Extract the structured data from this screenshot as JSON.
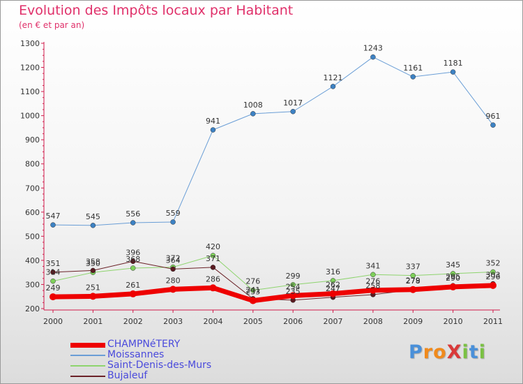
{
  "chart_data": {
    "type": "line",
    "title": "Evolution des Impôts locaux par Habitant",
    "subtitle": "(en € et par an)",
    "categories": [
      "2000",
      "2001",
      "2002",
      "2003",
      "2004",
      "2005",
      "2006",
      "2007",
      "2008",
      "2009",
      "2010",
      "2011"
    ],
    "ylim": [
      200,
      1300
    ],
    "yticks": [
      200,
      300,
      400,
      500,
      600,
      700,
      800,
      900,
      1000,
      1100,
      1200,
      1300
    ],
    "grid": false,
    "legend_position": "bottom-left",
    "series": [
      {
        "name": "Moissannes",
        "color": "#6a9ed6",
        "marker": "#3d82c4",
        "width": 1,
        "values": [
          547,
          545,
          556,
          559,
          941,
          1008,
          1017,
          1121,
          1243,
          1161,
          1181,
          961
        ]
      },
      {
        "name": "Saint-Denis-des-Murs",
        "color": "#8ed46e",
        "marker": "#7ed05a",
        "width": 1,
        "values": [
          314,
          350,
          368,
          372,
          420,
          276,
          299,
          316,
          341,
          337,
          345,
          352
        ]
      },
      {
        "name": "Bujaleuf",
        "color": "#6b2228",
        "marker": "#5a1a20",
        "width": 1,
        "values": [
          351,
          358,
          396,
          364,
          371,
          241,
          235,
          247,
          258,
          278,
          295,
          303
        ]
      },
      {
        "name": "CHAMPNéTERY",
        "color": "#ee0000",
        "marker": "#ee0000",
        "width": 7,
        "values": [
          249,
          251,
          261,
          280,
          286,
          233,
          254,
          262,
          276,
          279,
          290,
          296
        ]
      }
    ]
  },
  "legend": [
    {
      "name": "CHAMPNéTERY",
      "color": "#ee0000",
      "thickness": 7
    },
    {
      "name": "Moissannes",
      "color": "#6a9ed6",
      "thickness": 2
    },
    {
      "name": "Saint-Denis-des-Murs",
      "color": "#8ed46e",
      "thickness": 2
    },
    {
      "name": "Bujaleuf",
      "color": "#6b2228",
      "thickness": 2
    }
  ],
  "logo": {
    "text": "ProXiti",
    "colors": [
      "#4a90d9",
      "#f08a1c",
      "#d93a3a",
      "#7ac143"
    ]
  }
}
